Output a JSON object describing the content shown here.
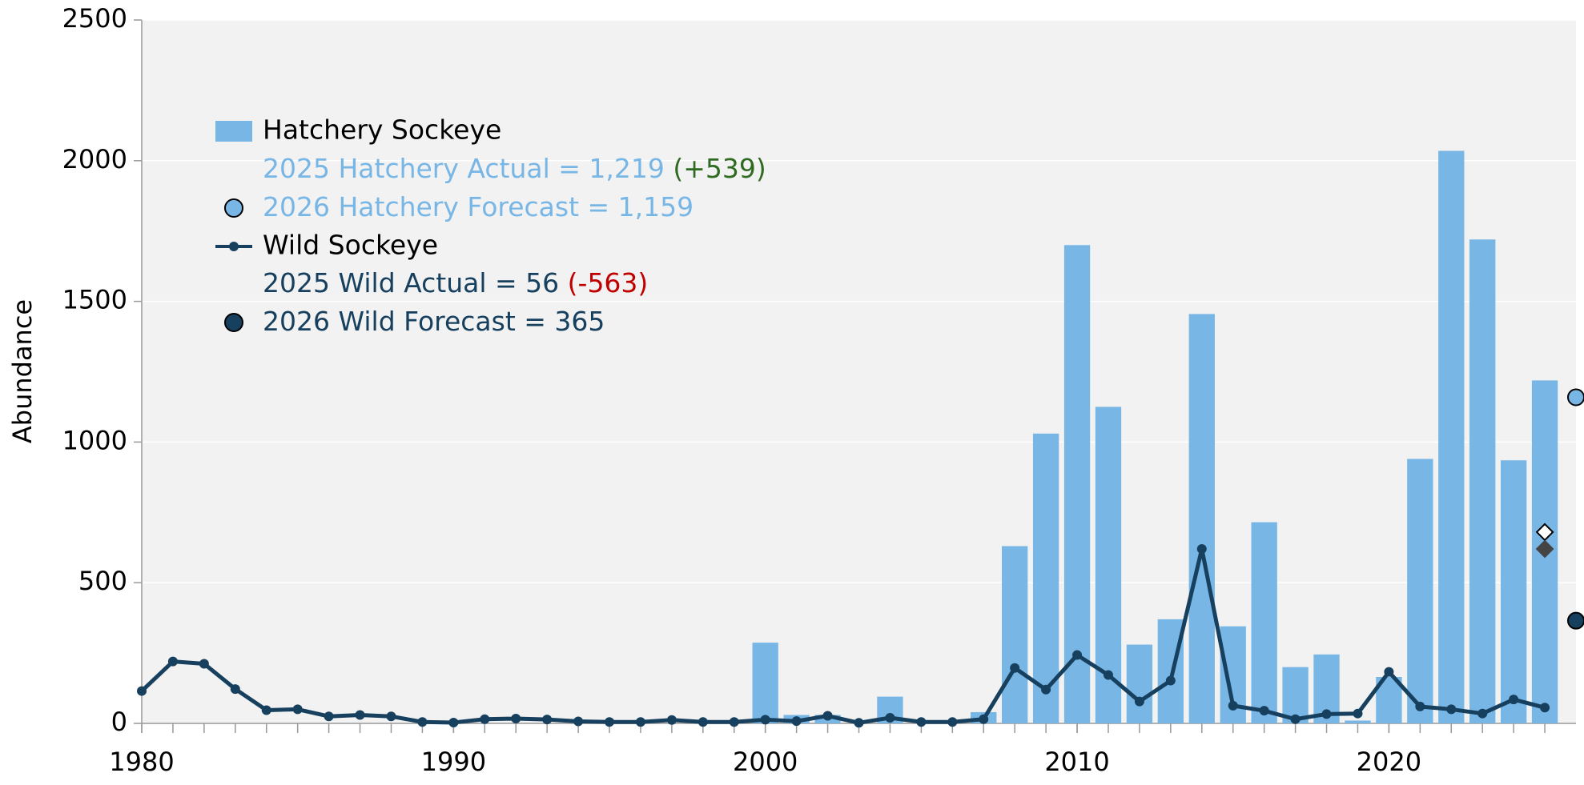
{
  "chart_data": {
    "type": "bar-line",
    "y_label": "Abundance",
    "x": [
      1980,
      1981,
      1982,
      1983,
      1984,
      1985,
      1986,
      1987,
      1988,
      1989,
      1990,
      1991,
      1992,
      1993,
      1994,
      1995,
      1996,
      1997,
      1998,
      1999,
      2000,
      2001,
      2002,
      2003,
      2004,
      2005,
      2006,
      2007,
      2008,
      2009,
      2010,
      2011,
      2012,
      2013,
      2014,
      2015,
      2016,
      2017,
      2018,
      2019,
      2020,
      2021,
      2022,
      2023,
      2024,
      2025
    ],
    "series": [
      {
        "name": "Hatchery Sockeye",
        "type": "bar",
        "color": "#78b6e6",
        "values": [
          null,
          null,
          null,
          null,
          null,
          null,
          null,
          null,
          null,
          null,
          null,
          null,
          null,
          null,
          null,
          null,
          null,
          null,
          null,
          null,
          287,
          30,
          30,
          0,
          95,
          0,
          0,
          40,
          630,
          1030,
          1700,
          1125,
          280,
          370,
          1455,
          345,
          715,
          200,
          245,
          10,
          165,
          940,
          2035,
          1720,
          935,
          1219
        ]
      },
      {
        "name": "Wild Sockeye",
        "type": "line",
        "color": "#17405f",
        "values": [
          115,
          220,
          212,
          122,
          47,
          50,
          25,
          30,
          25,
          5,
          3,
          15,
          17,
          14,
          7,
          5,
          5,
          12,
          5,
          5,
          13,
          8,
          27,
          2,
          20,
          5,
          5,
          15,
          197,
          120,
          243,
          172,
          78,
          152,
          620,
          63,
          45,
          15,
          33,
          35,
          183,
          60,
          50,
          35,
          85,
          56
        ]
      }
    ],
    "annotations": [
      {
        "text": "2025 Hatchery Actual = 1,219",
        "change": "(+539)",
        "color": "#78b6e6",
        "change_color": "#2e6a1f"
      },
      {
        "text": "2026 Hatchery Forecast = 1,159",
        "x": 2026,
        "value": 1159,
        "color": "#78b6e6"
      },
      {
        "text": "2025 Wild Actual = 56",
        "change": "(-563)",
        "color": "#17405f",
        "change_color": "#c00000"
      },
      {
        "text": "2026 Wild Forecast = 365",
        "x": 2026,
        "value": 365,
        "color": "#17405f"
      }
    ],
    "extra_points": [
      {
        "x": 2025,
        "value": 680,
        "shape": "open-diamond"
      },
      {
        "x": 2025,
        "value": 620,
        "shape": "filled-diamond"
      }
    ],
    "xlim": [
      1980,
      2026
    ],
    "xticks": [
      1980,
      1990,
      2000,
      2010,
      2020
    ],
    "ylim": [
      0,
      2500
    ],
    "yticks": [
      0,
      500,
      1000,
      1500,
      2000,
      2500
    ],
    "grid": true
  }
}
